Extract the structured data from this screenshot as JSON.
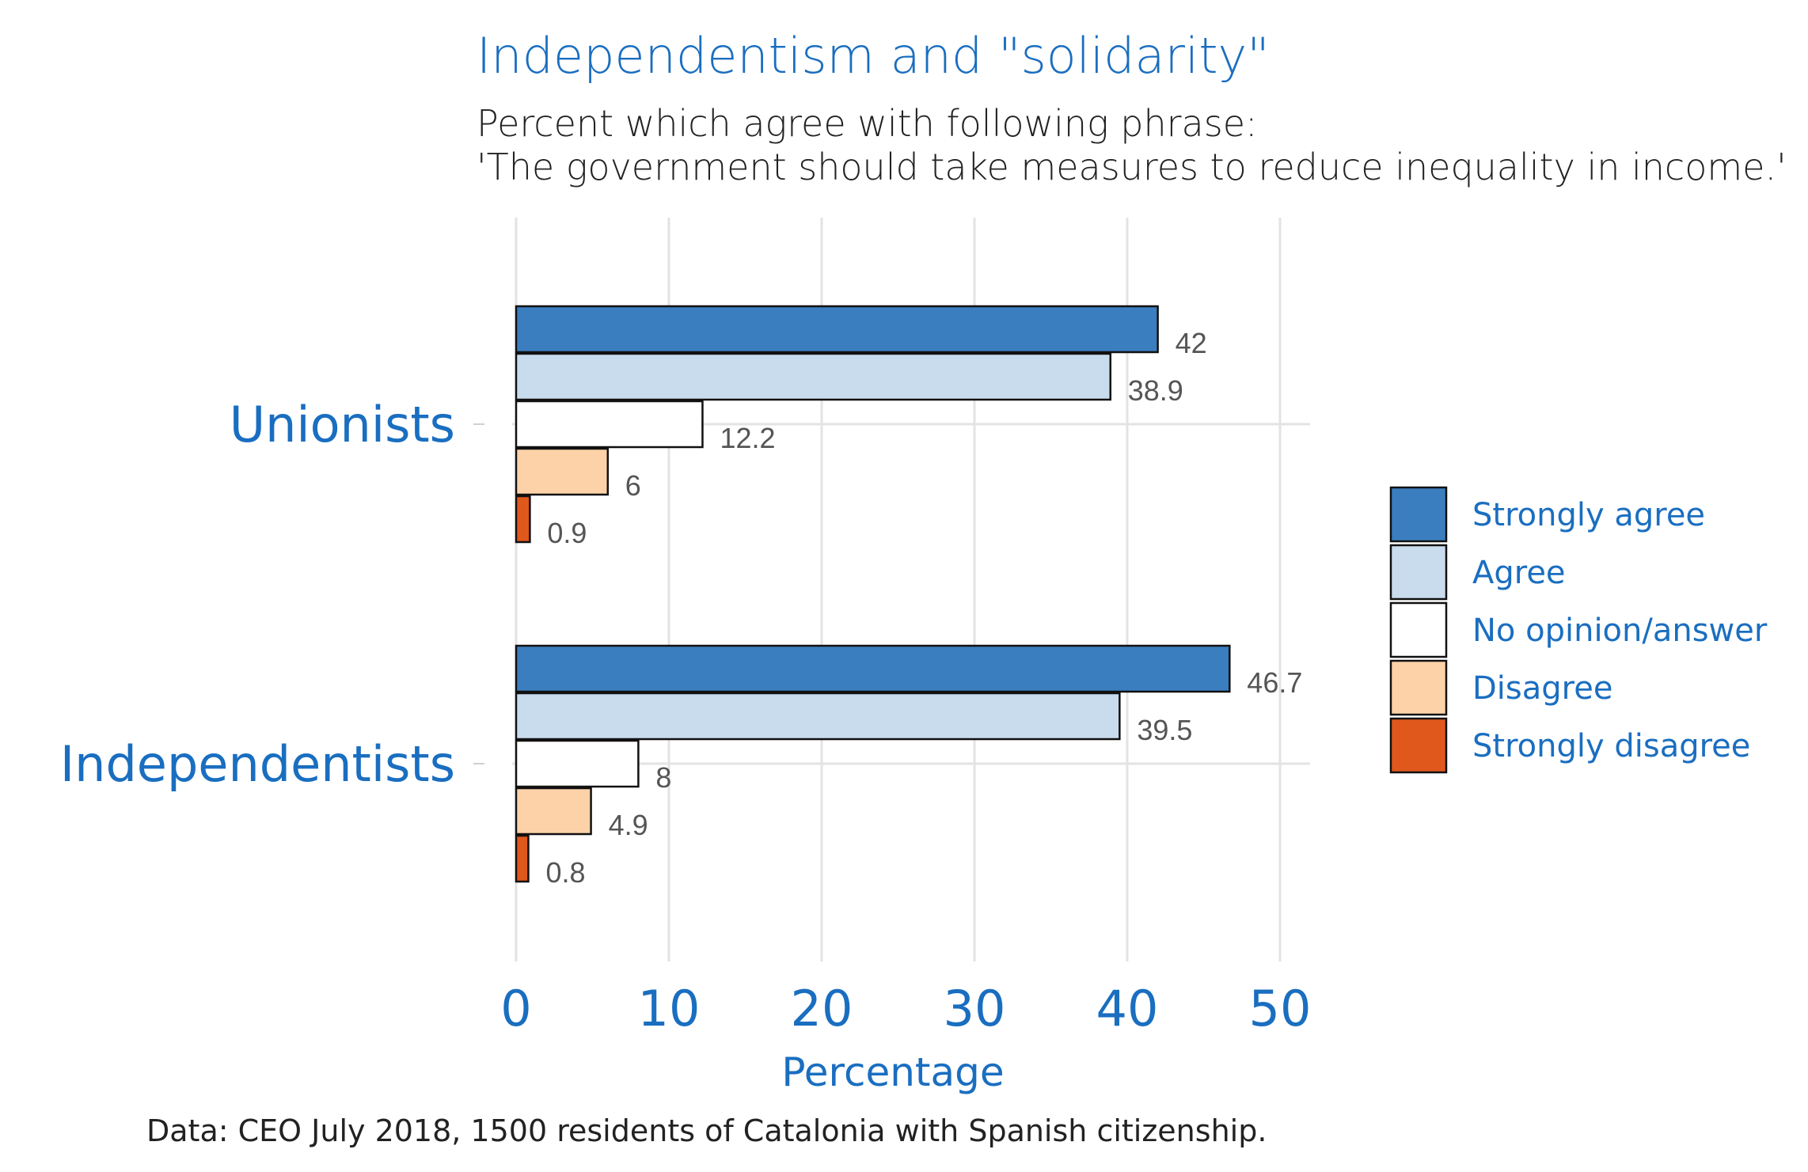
{
  "title": "Independentism and \"solidarity\"",
  "subtitle_line1": "Percent which agree with following phrase:",
  "subtitle_line2": "'The government should take measures to reduce inequality in income.'",
  "caption": "Data: CEO July 2018, 1500 residents of Catalonia with Spanish citizenship.",
  "colors": {
    "strongly_agree": "#3a7ebf",
    "agree": "#c9dcee",
    "no_opinion": "#ffffff",
    "disagree": "#fdd2a8",
    "strongly_disagree": "#e0581c"
  },
  "chart_data": {
    "type": "bar",
    "orientation": "horizontal",
    "title": "Independentism and \"solidarity\"",
    "xlabel": "Percentage",
    "ylabel": "",
    "xlim": [
      0,
      52
    ],
    "x_ticks": [
      0,
      10,
      20,
      30,
      40,
      50
    ],
    "categories": [
      "Unionists",
      "Independentists"
    ],
    "series": [
      {
        "name": "Strongly agree",
        "color": "#3a7ebf",
        "values": [
          42,
          46.7
        ],
        "labels": [
          "42",
          "46.7"
        ]
      },
      {
        "name": "Agree",
        "color": "#c9dcee",
        "values": [
          38.9,
          39.5
        ],
        "labels": [
          "38.9",
          "39.5"
        ]
      },
      {
        "name": "No opinion/answer",
        "color": "#ffffff",
        "values": [
          12.2,
          8
        ],
        "labels": [
          "12.2",
          "8"
        ]
      },
      {
        "name": "Disagree",
        "color": "#fdd2a8",
        "values": [
          6,
          4.9
        ],
        "labels": [
          "6",
          "4.9"
        ]
      },
      {
        "name": "Strongly disagree",
        "color": "#e0581c",
        "values": [
          0.9,
          0.8
        ],
        "labels": [
          "0.9",
          "0.8"
        ]
      }
    ],
    "grid": true,
    "legend_position": "right"
  }
}
